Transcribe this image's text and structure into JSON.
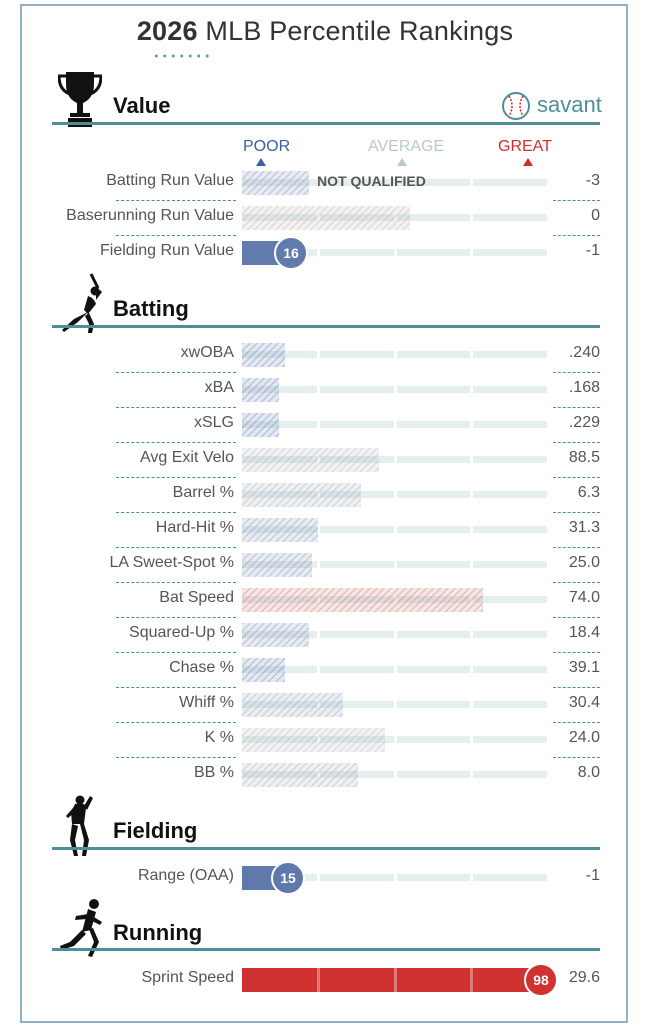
{
  "title": {
    "year": "2026",
    "rest": "MLB Percentile Rankings"
  },
  "brand": {
    "name": "savant"
  },
  "scale": {
    "poor": "POOR",
    "average": "AVERAGE",
    "great": "GREAT"
  },
  "colors": {
    "poor": "#3b5fa8",
    "average": "#aaaaaa",
    "great": "#d12d2d",
    "accent": "#4e8e9a"
  },
  "sections": {
    "value": "Value",
    "batting": "Batting",
    "fielding": "Fielding",
    "running": "Running"
  },
  "chart_data": {
    "type": "bar",
    "title": "2026 MLB Percentile Rankings",
    "scale_labels": [
      "POOR",
      "AVERAGE",
      "GREAT"
    ],
    "sections": [
      {
        "name": "Value",
        "metrics": [
          {
            "label": "Batting Run Value",
            "percentile": 22,
            "value": "-3",
            "qualified": false,
            "status": "NOT QUALIFIED"
          },
          {
            "label": "Baserunning Run Value",
            "percentile": 55,
            "value": "0",
            "qualified": false
          },
          {
            "label": "Fielding Run Value",
            "percentile": 16,
            "value": "-1",
            "qualified": true
          }
        ]
      },
      {
        "name": "Batting",
        "metrics": [
          {
            "label": "xwOBA",
            "percentile": 14,
            "value": ".240",
            "qualified": false
          },
          {
            "label": "xBA",
            "percentile": 12,
            "value": ".168",
            "qualified": false
          },
          {
            "label": "xSLG",
            "percentile": 12,
            "value": ".229",
            "qualified": false
          },
          {
            "label": "Avg Exit Velo",
            "percentile": 45,
            "value": "88.5",
            "qualified": false
          },
          {
            "label": "Barrel %",
            "percentile": 39,
            "value": "6.3",
            "qualified": false
          },
          {
            "label": "Hard-Hit %",
            "percentile": 25,
            "value": "31.3",
            "qualified": false
          },
          {
            "label": "LA Sweet-Spot %",
            "percentile": 23,
            "value": "25.0",
            "qualified": false
          },
          {
            "label": "Bat Speed",
            "percentile": 79,
            "value": "74.0",
            "qualified": false
          },
          {
            "label": "Squared-Up %",
            "percentile": 22,
            "value": "18.4",
            "qualified": false
          },
          {
            "label": "Chase %",
            "percentile": 14,
            "value": "39.1",
            "qualified": false
          },
          {
            "label": "Whiff %",
            "percentile": 33,
            "value": "30.4",
            "qualified": false
          },
          {
            "label": "K %",
            "percentile": 47,
            "value": "24.0",
            "qualified": false
          },
          {
            "label": "BB %",
            "percentile": 38,
            "value": "8.0",
            "qualified": false
          }
        ]
      },
      {
        "name": "Fielding",
        "metrics": [
          {
            "label": "Range (OAA)",
            "percentile": 15,
            "value": "-1",
            "qualified": true
          }
        ]
      },
      {
        "name": "Running",
        "metrics": [
          {
            "label": "Sprint Speed",
            "percentile": 98,
            "value": "29.6",
            "qualified": true
          }
        ]
      }
    ]
  }
}
